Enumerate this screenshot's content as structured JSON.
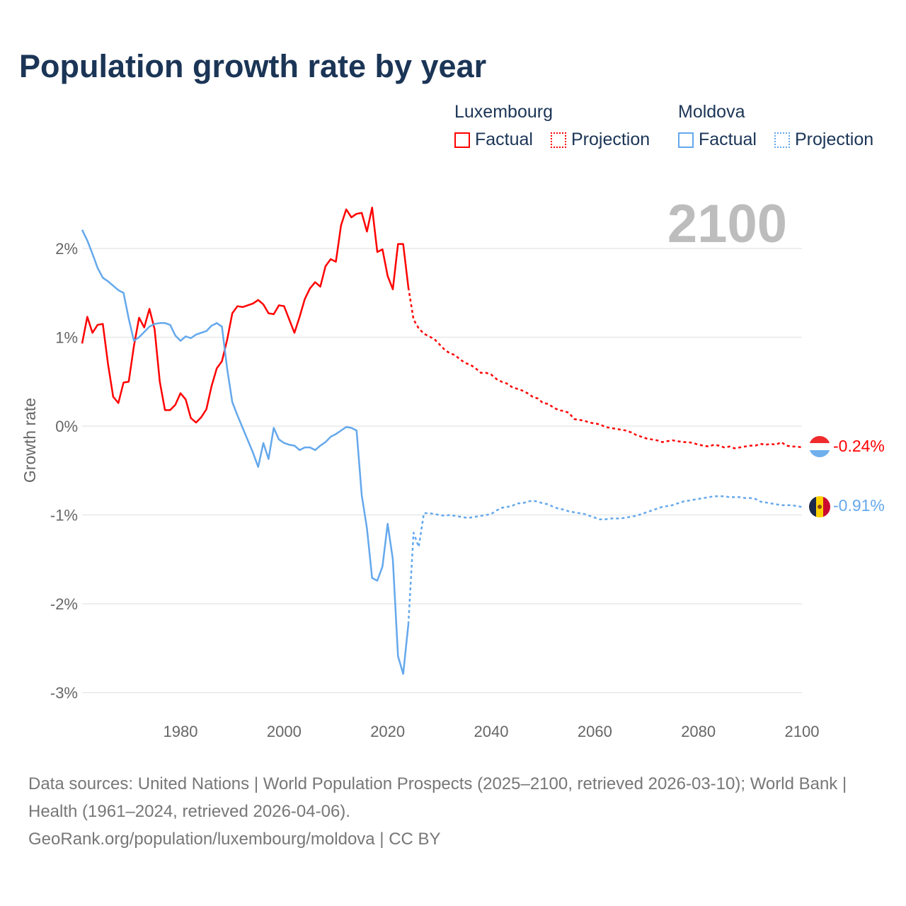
{
  "title": "Population growth rate by year",
  "legend": {
    "groups": [
      {
        "name": "Luxembourg",
        "color": "#ff0000",
        "factual_label": "Factual",
        "projection_label": "Projection"
      },
      {
        "name": "Moldova",
        "color": "#64a8ec",
        "factual_label": "Factual",
        "projection_label": "Projection"
      }
    ]
  },
  "year_display": "2100",
  "end_labels": {
    "luxembourg": "-0.24%",
    "moldova": "-0.91%"
  },
  "footer": {
    "sources": "Data sources: United Nations | World Population Prospects (2025–2100, retrieved 2026-03-10); World Bank | Health (1961–2024, retrieved 2026-04-06).",
    "link": "GeoRank.org/population/luxembourg/moldova | CC BY"
  },
  "chart_data": {
    "type": "line",
    "title": "Population growth rate by year",
    "xlabel": "",
    "ylabel": "Growth rate",
    "xlim": [
      1961,
      2100
    ],
    "ylim": [
      -3.2,
      2.6
    ],
    "xticks": [
      1980,
      2000,
      2020,
      2040,
      2060,
      2080,
      2100
    ],
    "yticks": [
      2,
      1,
      0,
      -1,
      -2,
      -3
    ],
    "ytick_labels": [
      "2%",
      "1%",
      "0%",
      "-1%",
      "-2%",
      "-3%"
    ],
    "grid": true,
    "legend_position": "top-right",
    "factual_start": 1961,
    "projection_start": 2025,
    "series": [
      {
        "name": "Luxembourg",
        "kind": "Factual",
        "color": "#ff0000",
        "start_year": 1961,
        "values": [
          0.93,
          1.23,
          1.05,
          1.14,
          1.15,
          0.7,
          0.33,
          0.26,
          0.49,
          0.5,
          0.9,
          1.22,
          1.11,
          1.32,
          1.09,
          0.5,
          0.18,
          0.18,
          0.24,
          0.37,
          0.3,
          0.09,
          0.04,
          0.1,
          0.19,
          0.45,
          0.65,
          0.73,
          0.97,
          1.27,
          1.35,
          1.34,
          1.36,
          1.38,
          1.42,
          1.37,
          1.27,
          1.26,
          1.36,
          1.35,
          1.2,
          1.05,
          1.23,
          1.43,
          1.55,
          1.62,
          1.57,
          1.8,
          1.88,
          1.85,
          2.26,
          2.44,
          2.35,
          2.39,
          2.4,
          2.19,
          2.46,
          1.96,
          1.99,
          1.69,
          1.54,
          2.05,
          2.05,
          1.56
        ]
      },
      {
        "name": "Luxembourg",
        "kind": "Projection",
        "color": "#ff0000",
        "start_year": 2025,
        "values": [
          1.2,
          1.1,
          1.04,
          1.01,
          0.98,
          0.92,
          0.86,
          0.82,
          0.8,
          0.75,
          0.71,
          0.69,
          0.65,
          0.6,
          0.6,
          0.58,
          0.53,
          0.5,
          0.48,
          0.44,
          0.42,
          0.4,
          0.37,
          0.33,
          0.31,
          0.26,
          0.25,
          0.21,
          0.18,
          0.17,
          0.15,
          0.08,
          0.07,
          0.06,
          0.04,
          0.03,
          0.02,
          -0.01,
          -0.02,
          -0.03,
          -0.04,
          -0.05,
          -0.07,
          -0.1,
          -0.12,
          -0.14,
          -0.15,
          -0.16,
          -0.18,
          -0.17,
          -0.16,
          -0.17,
          -0.18,
          -0.18,
          -0.19,
          -0.21,
          -0.22,
          -0.23,
          -0.21,
          -0.22,
          -0.24,
          -0.23,
          -0.25,
          -0.24,
          -0.23,
          -0.22,
          -0.22,
          -0.2,
          -0.21,
          -0.2,
          -0.21,
          -0.18,
          -0.22,
          -0.23,
          -0.23,
          -0.24
        ]
      },
      {
        "name": "Moldova",
        "kind": "Factual",
        "color": "#64a8ec",
        "start_year": 1961,
        "values": [
          2.21,
          2.09,
          1.94,
          1.78,
          1.67,
          1.63,
          1.58,
          1.53,
          1.5,
          1.21,
          0.96,
          1.0,
          1.06,
          1.12,
          1.15,
          1.16,
          1.16,
          1.14,
          1.02,
          0.96,
          1.01,
          0.99,
          1.03,
          1.05,
          1.07,
          1.13,
          1.16,
          1.12,
          0.65,
          0.27,
          0.12,
          -0.02,
          -0.16,
          -0.3,
          -0.46,
          -0.19,
          -0.37,
          -0.02,
          -0.15,
          -0.19,
          -0.21,
          -0.22,
          -0.27,
          -0.24,
          -0.24,
          -0.27,
          -0.22,
          -0.18,
          -0.12,
          -0.09,
          -0.05,
          -0.01,
          -0.02,
          -0.05,
          -0.78,
          -1.15,
          -1.71,
          -1.74,
          -1.58,
          -1.1,
          -1.5,
          -2.59,
          -2.79,
          -2.23
        ]
      },
      {
        "name": "Moldova",
        "kind": "Projection",
        "color": "#64a8ec",
        "start_year": 2025,
        "values": [
          -1.2,
          -1.36,
          -0.98,
          -0.98,
          -0.99,
          -1.0,
          -1.01,
          -1.0,
          -1.01,
          -1.02,
          -1.03,
          -1.03,
          -1.02,
          -1.01,
          -1.0,
          -0.99,
          -0.95,
          -0.92,
          -0.91,
          -0.9,
          -0.87,
          -0.87,
          -0.85,
          -0.84,
          -0.85,
          -0.87,
          -0.88,
          -0.91,
          -0.93,
          -0.94,
          -0.96,
          -0.97,
          -0.98,
          -0.99,
          -1.01,
          -1.03,
          -1.05,
          -1.05,
          -1.04,
          -1.04,
          -1.04,
          -1.03,
          -1.02,
          -1.01,
          -0.99,
          -0.97,
          -0.95,
          -0.93,
          -0.91,
          -0.9,
          -0.89,
          -0.87,
          -0.85,
          -0.84,
          -0.83,
          -0.82,
          -0.81,
          -0.8,
          -0.79,
          -0.79,
          -0.79,
          -0.8,
          -0.8,
          -0.8,
          -0.81,
          -0.81,
          -0.82,
          -0.85,
          -0.86,
          -0.87,
          -0.88,
          -0.89,
          -0.89,
          -0.89,
          -0.9,
          -0.91
        ]
      }
    ]
  }
}
